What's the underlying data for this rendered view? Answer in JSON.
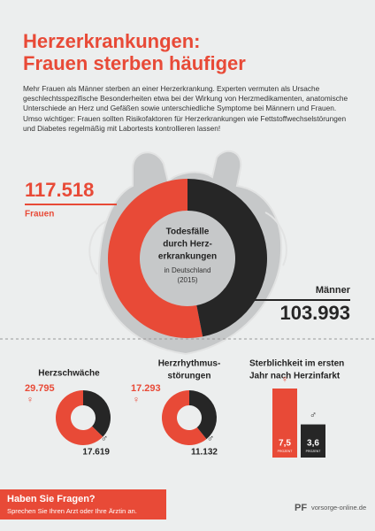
{
  "header": {
    "title": [
      "Herzerkrankungen:",
      "Frauen sterben häufiger"
    ],
    "intro": "Mehr Frauen als Männer sterben an einer Herzerkrankung. Experten vermuten als Ursache geschlechtsspezifische Besonderheiten etwa bei der Wirkung von Herzmedikamenten, anatomische Unterschiede an Herz und Gefäßen sowie unterschiedliche Symptome bei Männern und Frauen. Umso wichtiger: Frauen sollten Risikofaktoren für Herzerkrankungen wie Fettstoffwechselstörungen und Diabetes regelmäßig mit Labortests kontrollieren lassen!"
  },
  "chart_data": [
    {
      "type": "donut",
      "title": [
        "Todesfälle",
        "durch Herz-",
        "erkrankungen"
      ],
      "subtitle": [
        "in Deutschland",
        "(2015)"
      ],
      "categories": [
        "Frauen",
        "Männer"
      ],
      "values": [
        117518,
        103993
      ],
      "value_labels": [
        "117.518",
        "103.993"
      ],
      "colors": [
        "#e84a37",
        "#262626"
      ]
    },
    {
      "type": "donut",
      "title": [
        "Herzschwäche"
      ],
      "categories": [
        "♀",
        "♂"
      ],
      "values": [
        29795,
        17619
      ],
      "value_labels": [
        "29.795",
        "17.619"
      ],
      "colors": [
        "#e84a37",
        "#262626"
      ]
    },
    {
      "type": "donut",
      "title": [
        "Herzrhythmus-",
        "störungen"
      ],
      "categories": [
        "♀",
        "♂"
      ],
      "values": [
        17293,
        11132
      ],
      "value_labels": [
        "17.293",
        "11.132"
      ],
      "colors": [
        "#e84a37",
        "#262626"
      ]
    },
    {
      "type": "bar",
      "title": [
        "Sterblichkeit im ersten",
        "Jahr nach Herzinfarkt"
      ],
      "categories": [
        "♀",
        "♂"
      ],
      "values": [
        7.5,
        3.6
      ],
      "value_labels": [
        "7,5",
        "3,6"
      ],
      "unit": "PROZENT",
      "colors": [
        "#e84a37",
        "#262626"
      ]
    }
  ],
  "footer": {
    "question": "Haben Sie Fragen?",
    "advice": "Sprechen Sie Ihren Arzt oder Ihre Ärztin an.",
    "logo": "PF",
    "website": "vorsorge-online.de"
  }
}
